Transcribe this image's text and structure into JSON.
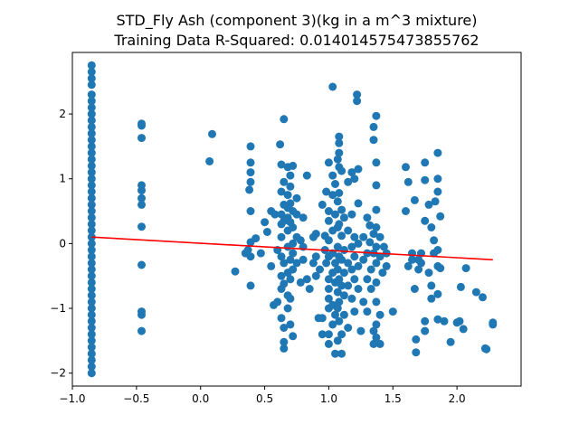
{
  "chart_data": {
    "type": "scatter",
    "title": "STD_Fly Ash (component 3)(kg in a m^3 mixture)",
    "subtitle": "Training Data R-Squared: 0.014014575473855762",
    "xlabel": "",
    "ylabel": "",
    "xlim": [
      -1.0,
      2.5
    ],
    "ylim": [
      -2.2,
      2.95
    ],
    "grid": false,
    "x_ticks": [
      {
        "value": -1.0,
        "label": "−1.0"
      },
      {
        "value": -0.5,
        "label": "−0.5"
      },
      {
        "value": 0.0,
        "label": "0.0"
      },
      {
        "value": 0.5,
        "label": "0.5"
      },
      {
        "value": 1.0,
        "label": "1.0"
      },
      {
        "value": 1.5,
        "label": "1.5"
      },
      {
        "value": 2.0,
        "label": "2.0"
      }
    ],
    "y_ticks": [
      {
        "value": -2,
        "label": "−2"
      },
      {
        "value": -1,
        "label": "−1"
      },
      {
        "value": 0,
        "label": "0"
      },
      {
        "value": 1,
        "label": "1"
      },
      {
        "value": 2,
        "label": "2"
      }
    ],
    "point_color": "#1f77b4",
    "line_color": "#ff0000",
    "fit_line": {
      "x": [
        -0.85,
        2.28
      ],
      "y": [
        0.1,
        -0.25
      ]
    },
    "points": [
      [
        -0.85,
        2.75
      ],
      [
        -0.85,
        2.65
      ],
      [
        -0.85,
        2.55
      ],
      [
        -0.85,
        2.45
      ],
      [
        -0.85,
        2.3
      ],
      [
        -0.85,
        2.2
      ],
      [
        -0.85,
        2.1
      ],
      [
        -0.85,
        2.0
      ],
      [
        -0.85,
        1.9
      ],
      [
        -0.85,
        1.8
      ],
      [
        -0.85,
        1.7
      ],
      [
        -0.85,
        1.6
      ],
      [
        -0.85,
        1.5
      ],
      [
        -0.85,
        1.4
      ],
      [
        -0.85,
        1.3
      ],
      [
        -0.85,
        1.2
      ],
      [
        -0.85,
        1.1
      ],
      [
        -0.85,
        1.0
      ],
      [
        -0.85,
        0.9
      ],
      [
        -0.85,
        0.8
      ],
      [
        -0.85,
        0.7
      ],
      [
        -0.85,
        0.6
      ],
      [
        -0.85,
        0.5
      ],
      [
        -0.85,
        0.4
      ],
      [
        -0.85,
        0.3
      ],
      [
        -0.85,
        0.2
      ],
      [
        -0.85,
        0.1
      ],
      [
        -0.85,
        0.0
      ],
      [
        -0.85,
        -0.1
      ],
      [
        -0.85,
        -0.2
      ],
      [
        -0.85,
        -0.3
      ],
      [
        -0.85,
        -0.4
      ],
      [
        -0.85,
        -0.5
      ],
      [
        -0.85,
        -0.6
      ],
      [
        -0.85,
        -0.7
      ],
      [
        -0.85,
        -0.8
      ],
      [
        -0.85,
        -0.9
      ],
      [
        -0.85,
        -1.0
      ],
      [
        -0.85,
        -1.1
      ],
      [
        -0.85,
        -1.2
      ],
      [
        -0.85,
        -1.3
      ],
      [
        -0.85,
        -1.4
      ],
      [
        -0.85,
        -1.5
      ],
      [
        -0.85,
        -1.6
      ],
      [
        -0.85,
        -1.7
      ],
      [
        -0.85,
        -1.8
      ],
      [
        -0.85,
        -1.9
      ],
      [
        -0.85,
        -2.0
      ],
      [
        -0.46,
        1.85
      ],
      [
        -0.46,
        1.82
      ],
      [
        -0.46,
        1.63
      ],
      [
        -0.46,
        0.9
      ],
      [
        -0.46,
        0.82
      ],
      [
        -0.46,
        0.7
      ],
      [
        -0.46,
        0.6
      ],
      [
        -0.46,
        0.26
      ],
      [
        -0.46,
        -0.33
      ],
      [
        -0.46,
        -1.05
      ],
      [
        -0.46,
        -1.1
      ],
      [
        -0.46,
        -1.35
      ],
      [
        0.07,
        1.27
      ],
      [
        0.09,
        1.69
      ],
      [
        0.27,
        -0.43
      ],
      [
        0.35,
        -0.15
      ],
      [
        0.37,
        -0.1
      ],
      [
        0.38,
        0.83
      ],
      [
        0.39,
        1.5
      ],
      [
        0.39,
        1.25
      ],
      [
        0.39,
        1.1
      ],
      [
        0.39,
        0.95
      ],
      [
        0.39,
        0.5
      ],
      [
        0.39,
        0.02
      ],
      [
        0.39,
        -0.2
      ],
      [
        0.39,
        -0.65
      ],
      [
        0.43,
        0.08
      ],
      [
        0.47,
        -0.15
      ],
      [
        0.5,
        0.33
      ],
      [
        0.52,
        0.18
      ],
      [
        0.55,
        0.5
      ],
      [
        0.55,
        -0.35
      ],
      [
        0.57,
        -0.95
      ],
      [
        0.58,
        0.45
      ],
      [
        0.6,
        -0.1
      ],
      [
        0.6,
        -0.9
      ],
      [
        0.62,
        1.53
      ],
      [
        0.63,
        1.22
      ],
      [
        0.63,
        0.8
      ],
      [
        0.63,
        0.45
      ],
      [
        0.63,
        0.3
      ],
      [
        0.63,
        0.1
      ],
      [
        0.63,
        -0.2
      ],
      [
        0.63,
        -0.5
      ],
      [
        0.63,
        -0.7
      ],
      [
        0.63,
        -1.15
      ],
      [
        0.65,
        1.92
      ],
      [
        0.65,
        0.95
      ],
      [
        0.65,
        0.6
      ],
      [
        0.65,
        0.35
      ],
      [
        0.65,
        -0.3
      ],
      [
        0.65,
        -0.62
      ],
      [
        0.65,
        -1.3
      ],
      [
        0.65,
        -1.52
      ],
      [
        0.65,
        -1.62
      ],
      [
        0.68,
        1.18
      ],
      [
        0.68,
        0.75
      ],
      [
        0.68,
        0.55
      ],
      [
        0.68,
        0.4
      ],
      [
        0.68,
        0.2
      ],
      [
        0.68,
        -0.05
      ],
      [
        0.68,
        -0.45
      ],
      [
        0.68,
        -0.8
      ],
      [
        0.68,
        -1.0
      ],
      [
        0.7,
        1.05
      ],
      [
        0.7,
        0.88
      ],
      [
        0.7,
        0.62
      ],
      [
        0.7,
        0.33
      ],
      [
        0.7,
        -0.25
      ],
      [
        0.7,
        -0.55
      ],
      [
        0.7,
        -0.85
      ],
      [
        0.7,
        -1.25
      ],
      [
        0.72,
        1.2
      ],
      [
        0.72,
        0.5
      ],
      [
        0.72,
        0.25
      ],
      [
        0.72,
        0.0
      ],
      [
        0.72,
        -0.15
      ],
      [
        0.72,
        -0.4
      ],
      [
        0.72,
        -1.43
      ],
      [
        0.75,
        0.7
      ],
      [
        0.75,
        0.45
      ],
      [
        0.75,
        0.1
      ],
      [
        0.75,
        -0.3
      ],
      [
        0.78,
        0.05
      ],
      [
        0.78,
        -0.6
      ],
      [
        0.8,
        0.4
      ],
      [
        0.8,
        -0.05
      ],
      [
        0.8,
        -0.25
      ],
      [
        0.83,
        1.05
      ],
      [
        0.83,
        -0.55
      ],
      [
        0.85,
        -0.7
      ],
      [
        0.88,
        0.1
      ],
      [
        0.88,
        -0.3
      ],
      [
        0.9,
        0.15
      ],
      [
        0.9,
        -0.2
      ],
      [
        0.9,
        -0.5
      ],
      [
        0.92,
        -1.15
      ],
      [
        0.93,
        -0.4
      ],
      [
        0.95,
        0.6
      ],
      [
        0.95,
        -1.4
      ],
      [
        0.95,
        -1.15
      ],
      [
        0.97,
        0.12
      ],
      [
        0.97,
        -0.1
      ],
      [
        0.98,
        -0.3
      ],
      [
        0.98,
        0.8
      ],
      [
        1.0,
        1.25
      ],
      [
        1.0,
        0.5
      ],
      [
        1.0,
        0.35
      ],
      [
        1.0,
        0.05
      ],
      [
        1.0,
        -0.2
      ],
      [
        1.0,
        -0.55
      ],
      [
        1.0,
        -0.7
      ],
      [
        1.0,
        -0.85
      ],
      [
        1.0,
        -1.0
      ],
      [
        1.0,
        -1.4
      ],
      [
        1.0,
        -1.55
      ],
      [
        1.03,
        2.42
      ],
      [
        1.03,
        1.05
      ],
      [
        1.03,
        0.75
      ],
      [
        1.03,
        0.2
      ],
      [
        1.03,
        -0.15
      ],
      [
        1.03,
        -0.45
      ],
      [
        1.03,
        -0.95
      ],
      [
        1.03,
        -1.25
      ],
      [
        1.05,
        0.92
      ],
      [
        1.05,
        0.45
      ],
      [
        1.05,
        -0.3
      ],
      [
        1.05,
        -0.6
      ],
      [
        1.05,
        -1.1
      ],
      [
        1.05,
        -1.7
      ],
      [
        1.07,
        1.3
      ],
      [
        1.07,
        0.65
      ],
      [
        1.07,
        0.25
      ],
      [
        1.07,
        -0.05
      ],
      [
        1.07,
        -0.4
      ],
      [
        1.07,
        -0.75
      ],
      [
        1.07,
        -1.0
      ],
      [
        1.07,
        -1.5
      ],
      [
        1.08,
        1.65
      ],
      [
        1.08,
        1.55
      ],
      [
        1.08,
        1.4
      ],
      [
        1.08,
        1.18
      ],
      [
        1.08,
        0.78
      ],
      [
        1.08,
        0.3
      ],
      [
        1.08,
        -0.2
      ],
      [
        1.08,
        -0.55
      ],
      [
        1.08,
        -0.9
      ],
      [
        1.08,
        -1.2
      ],
      [
        1.1,
        1.12
      ],
      [
        1.1,
        0.52
      ],
      [
        1.1,
        0.12
      ],
      [
        1.1,
        -0.25
      ],
      [
        1.1,
        -0.65
      ],
      [
        1.1,
        -1.4
      ],
      [
        1.1,
        -1.7
      ],
      [
        1.12,
        0.4
      ],
      [
        1.12,
        -0.1
      ],
      [
        1.12,
        -0.45
      ],
      [
        1.12,
        -0.8
      ],
      [
        1.12,
        -1.1
      ],
      [
        1.15,
        0.95
      ],
      [
        1.15,
        0.2
      ],
      [
        1.15,
        -0.3
      ],
      [
        1.15,
        -0.65
      ],
      [
        1.15,
        -1.3
      ],
      [
        1.18,
        1.1
      ],
      [
        1.18,
        0.45
      ],
      [
        1.18,
        -0.05
      ],
      [
        1.18,
        -0.4
      ],
      [
        1.18,
        -0.85
      ],
      [
        1.2,
        1.0
      ],
      [
        1.2,
        0.1
      ],
      [
        1.2,
        -0.2
      ],
      [
        1.2,
        -0.55
      ],
      [
        1.2,
        -1.05
      ],
      [
        1.22,
        2.3
      ],
      [
        1.22,
        2.2
      ],
      [
        1.23,
        1.15
      ],
      [
        1.23,
        0.62
      ],
      [
        1.23,
        0.0
      ],
      [
        1.23,
        -0.35
      ],
      [
        1.23,
        -0.7
      ],
      [
        1.25,
        -1.35
      ],
      [
        1.27,
        0.1
      ],
      [
        1.27,
        -0.25
      ],
      [
        1.27,
        -0.9
      ],
      [
        1.3,
        0.4
      ],
      [
        1.3,
        -0.15
      ],
      [
        1.3,
        -0.55
      ],
      [
        1.3,
        -1.05
      ],
      [
        1.32,
        0.28
      ],
      [
        1.32,
        0.02
      ],
      [
        1.33,
        -0.4
      ],
      [
        1.33,
        -0.7
      ],
      [
        1.35,
        1.8
      ],
      [
        1.35,
        1.6
      ],
      [
        1.35,
        0.15
      ],
      [
        1.35,
        -0.15
      ],
      [
        1.35,
        -1.35
      ],
      [
        1.35,
        -1.55
      ],
      [
        1.37,
        1.97
      ],
      [
        1.37,
        1.25
      ],
      [
        1.37,
        0.9
      ],
      [
        1.37,
        0.52
      ],
      [
        1.37,
        0.25
      ],
      [
        1.37,
        -0.05
      ],
      [
        1.37,
        -0.3
      ],
      [
        1.37,
        -0.6
      ],
      [
        1.37,
        -0.9
      ],
      [
        1.37,
        -1.25
      ],
      [
        1.37,
        -1.45
      ],
      [
        1.4,
        0.1
      ],
      [
        1.4,
        -0.2
      ],
      [
        1.4,
        -1.1
      ],
      [
        1.4,
        -1.55
      ],
      [
        1.42,
        -0.45
      ],
      [
        1.43,
        -0.05
      ],
      [
        1.45,
        -0.15
      ],
      [
        1.45,
        -0.35
      ],
      [
        1.5,
        -1.05
      ],
      [
        1.6,
        1.18
      ],
      [
        1.6,
        0.5
      ],
      [
        1.62,
        0.95
      ],
      [
        1.62,
        -0.35
      ],
      [
        1.65,
        -0.25
      ],
      [
        1.65,
        -0.15
      ],
      [
        1.67,
        0.67
      ],
      [
        1.67,
        -0.7
      ],
      [
        1.68,
        -1.48
      ],
      [
        1.68,
        -1.68
      ],
      [
        1.7,
        -0.25
      ],
      [
        1.7,
        -0.4
      ],
      [
        1.72,
        -0.15
      ],
      [
        1.72,
        -0.3
      ],
      [
        1.75,
        1.25
      ],
      [
        1.75,
        0.98
      ],
      [
        1.75,
        0.35
      ],
      [
        1.75,
        -1.2
      ],
      [
        1.75,
        -1.35
      ],
      [
        1.78,
        0.6
      ],
      [
        1.78,
        -0.45
      ],
      [
        1.8,
        -0.85
      ],
      [
        1.8,
        -0.65
      ],
      [
        1.8,
        0.25
      ],
      [
        1.82,
        0.05
      ],
      [
        1.82,
        -0.15
      ],
      [
        1.83,
        0.65
      ],
      [
        1.85,
        1.4
      ],
      [
        1.85,
        1.0
      ],
      [
        1.85,
        0.8
      ],
      [
        1.85,
        -0.1
      ],
      [
        1.85,
        -0.35
      ],
      [
        1.85,
        -0.78
      ],
      [
        1.85,
        -1.17
      ],
      [
        1.87,
        0.42
      ],
      [
        1.87,
        -0.38
      ],
      [
        1.9,
        -1.2
      ],
      [
        1.95,
        -1.52
      ],
      [
        2.0,
        -1.22
      ],
      [
        2.02,
        -1.2
      ],
      [
        2.03,
        -0.67
      ],
      [
        2.05,
        -1.32
      ],
      [
        2.07,
        -0.38
      ],
      [
        2.15,
        -0.75
      ],
      [
        2.2,
        -0.83
      ],
      [
        2.22,
        -1.62
      ],
      [
        2.23,
        -1.63
      ],
      [
        2.28,
        -1.22
      ],
      [
        2.28,
        -1.25
      ]
    ]
  }
}
